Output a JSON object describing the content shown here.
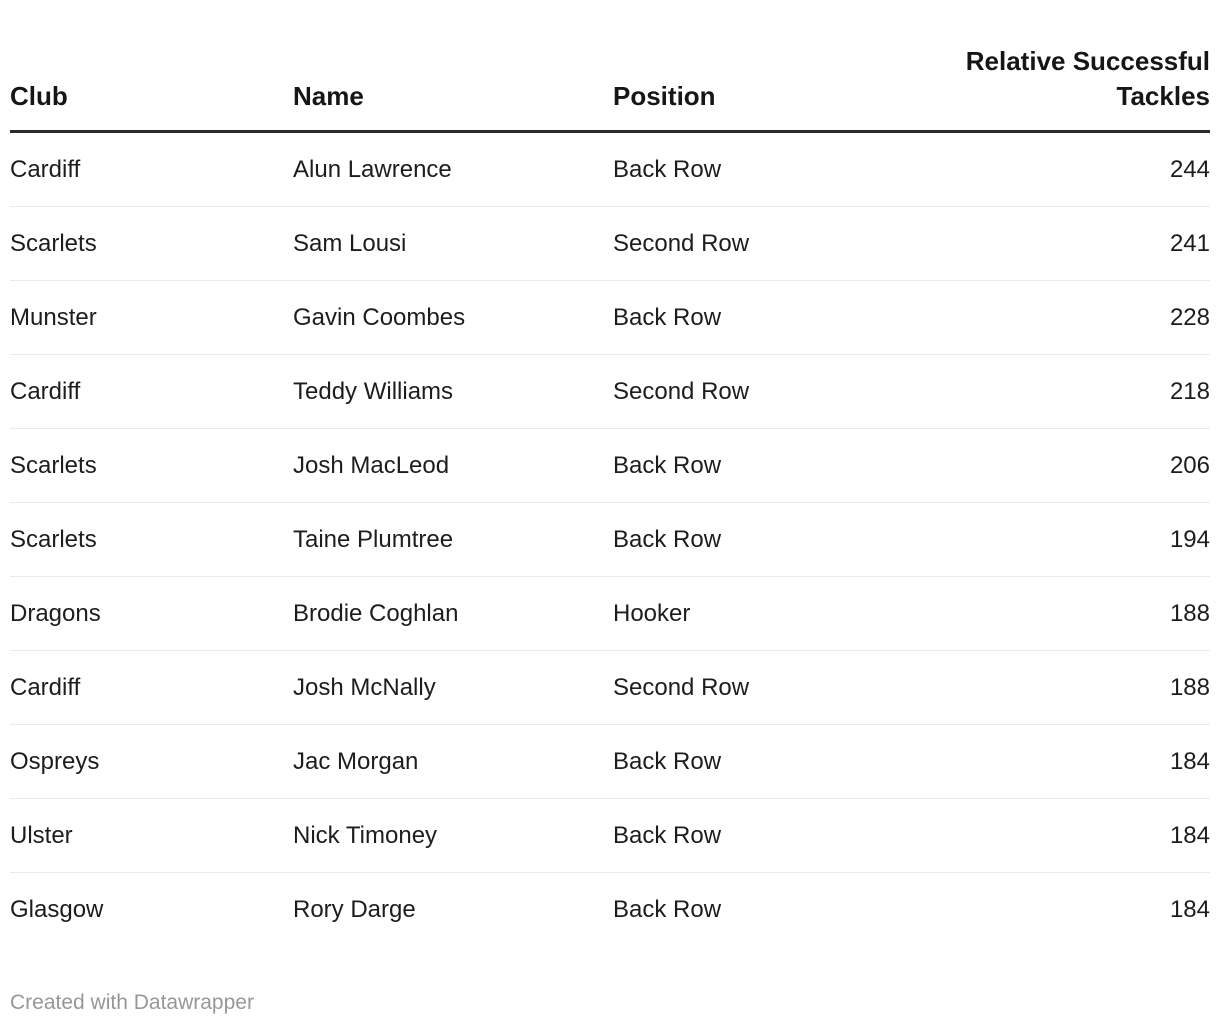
{
  "chart_data": {
    "type": "table",
    "columns": [
      "Club",
      "Name",
      "Position",
      "Relative Successful Tackles"
    ],
    "rows": [
      [
        "Cardiff",
        "Alun Lawrence",
        "Back Row",
        244
      ],
      [
        "Scarlets",
        "Sam Lousi",
        "Second Row",
        241
      ],
      [
        "Munster",
        "Gavin Coombes",
        "Back Row",
        228
      ],
      [
        "Cardiff",
        "Teddy Williams",
        "Second Row",
        218
      ],
      [
        "Scarlets",
        "Josh MacLeod",
        "Back Row",
        206
      ],
      [
        "Scarlets",
        "Taine Plumtree",
        "Back Row",
        194
      ],
      [
        "Dragons",
        "Brodie Coghlan",
        "Hooker",
        188
      ],
      [
        "Cardiff",
        "Josh McNally",
        "Second Row",
        188
      ],
      [
        "Ospreys",
        "Jac Morgan",
        "Back Row",
        184
      ],
      [
        "Ulster",
        "Nick Timoney",
        "Back Row",
        184
      ],
      [
        "Glasgow",
        "Rory Darge",
        "Back Row",
        184
      ]
    ],
    "title": "",
    "layout_hints": {
      "value_column_align": "right",
      "header_rule": true,
      "row_rules": true
    }
  },
  "footer": {
    "attribution": "Created with Datawrapper"
  },
  "colors": {
    "text": "#1d1d1d",
    "header_text": "#161616",
    "header_rule": "#2b2b2b",
    "row_rule": "#eaeaea",
    "footer_text": "#979797",
    "background": "#ffffff"
  }
}
